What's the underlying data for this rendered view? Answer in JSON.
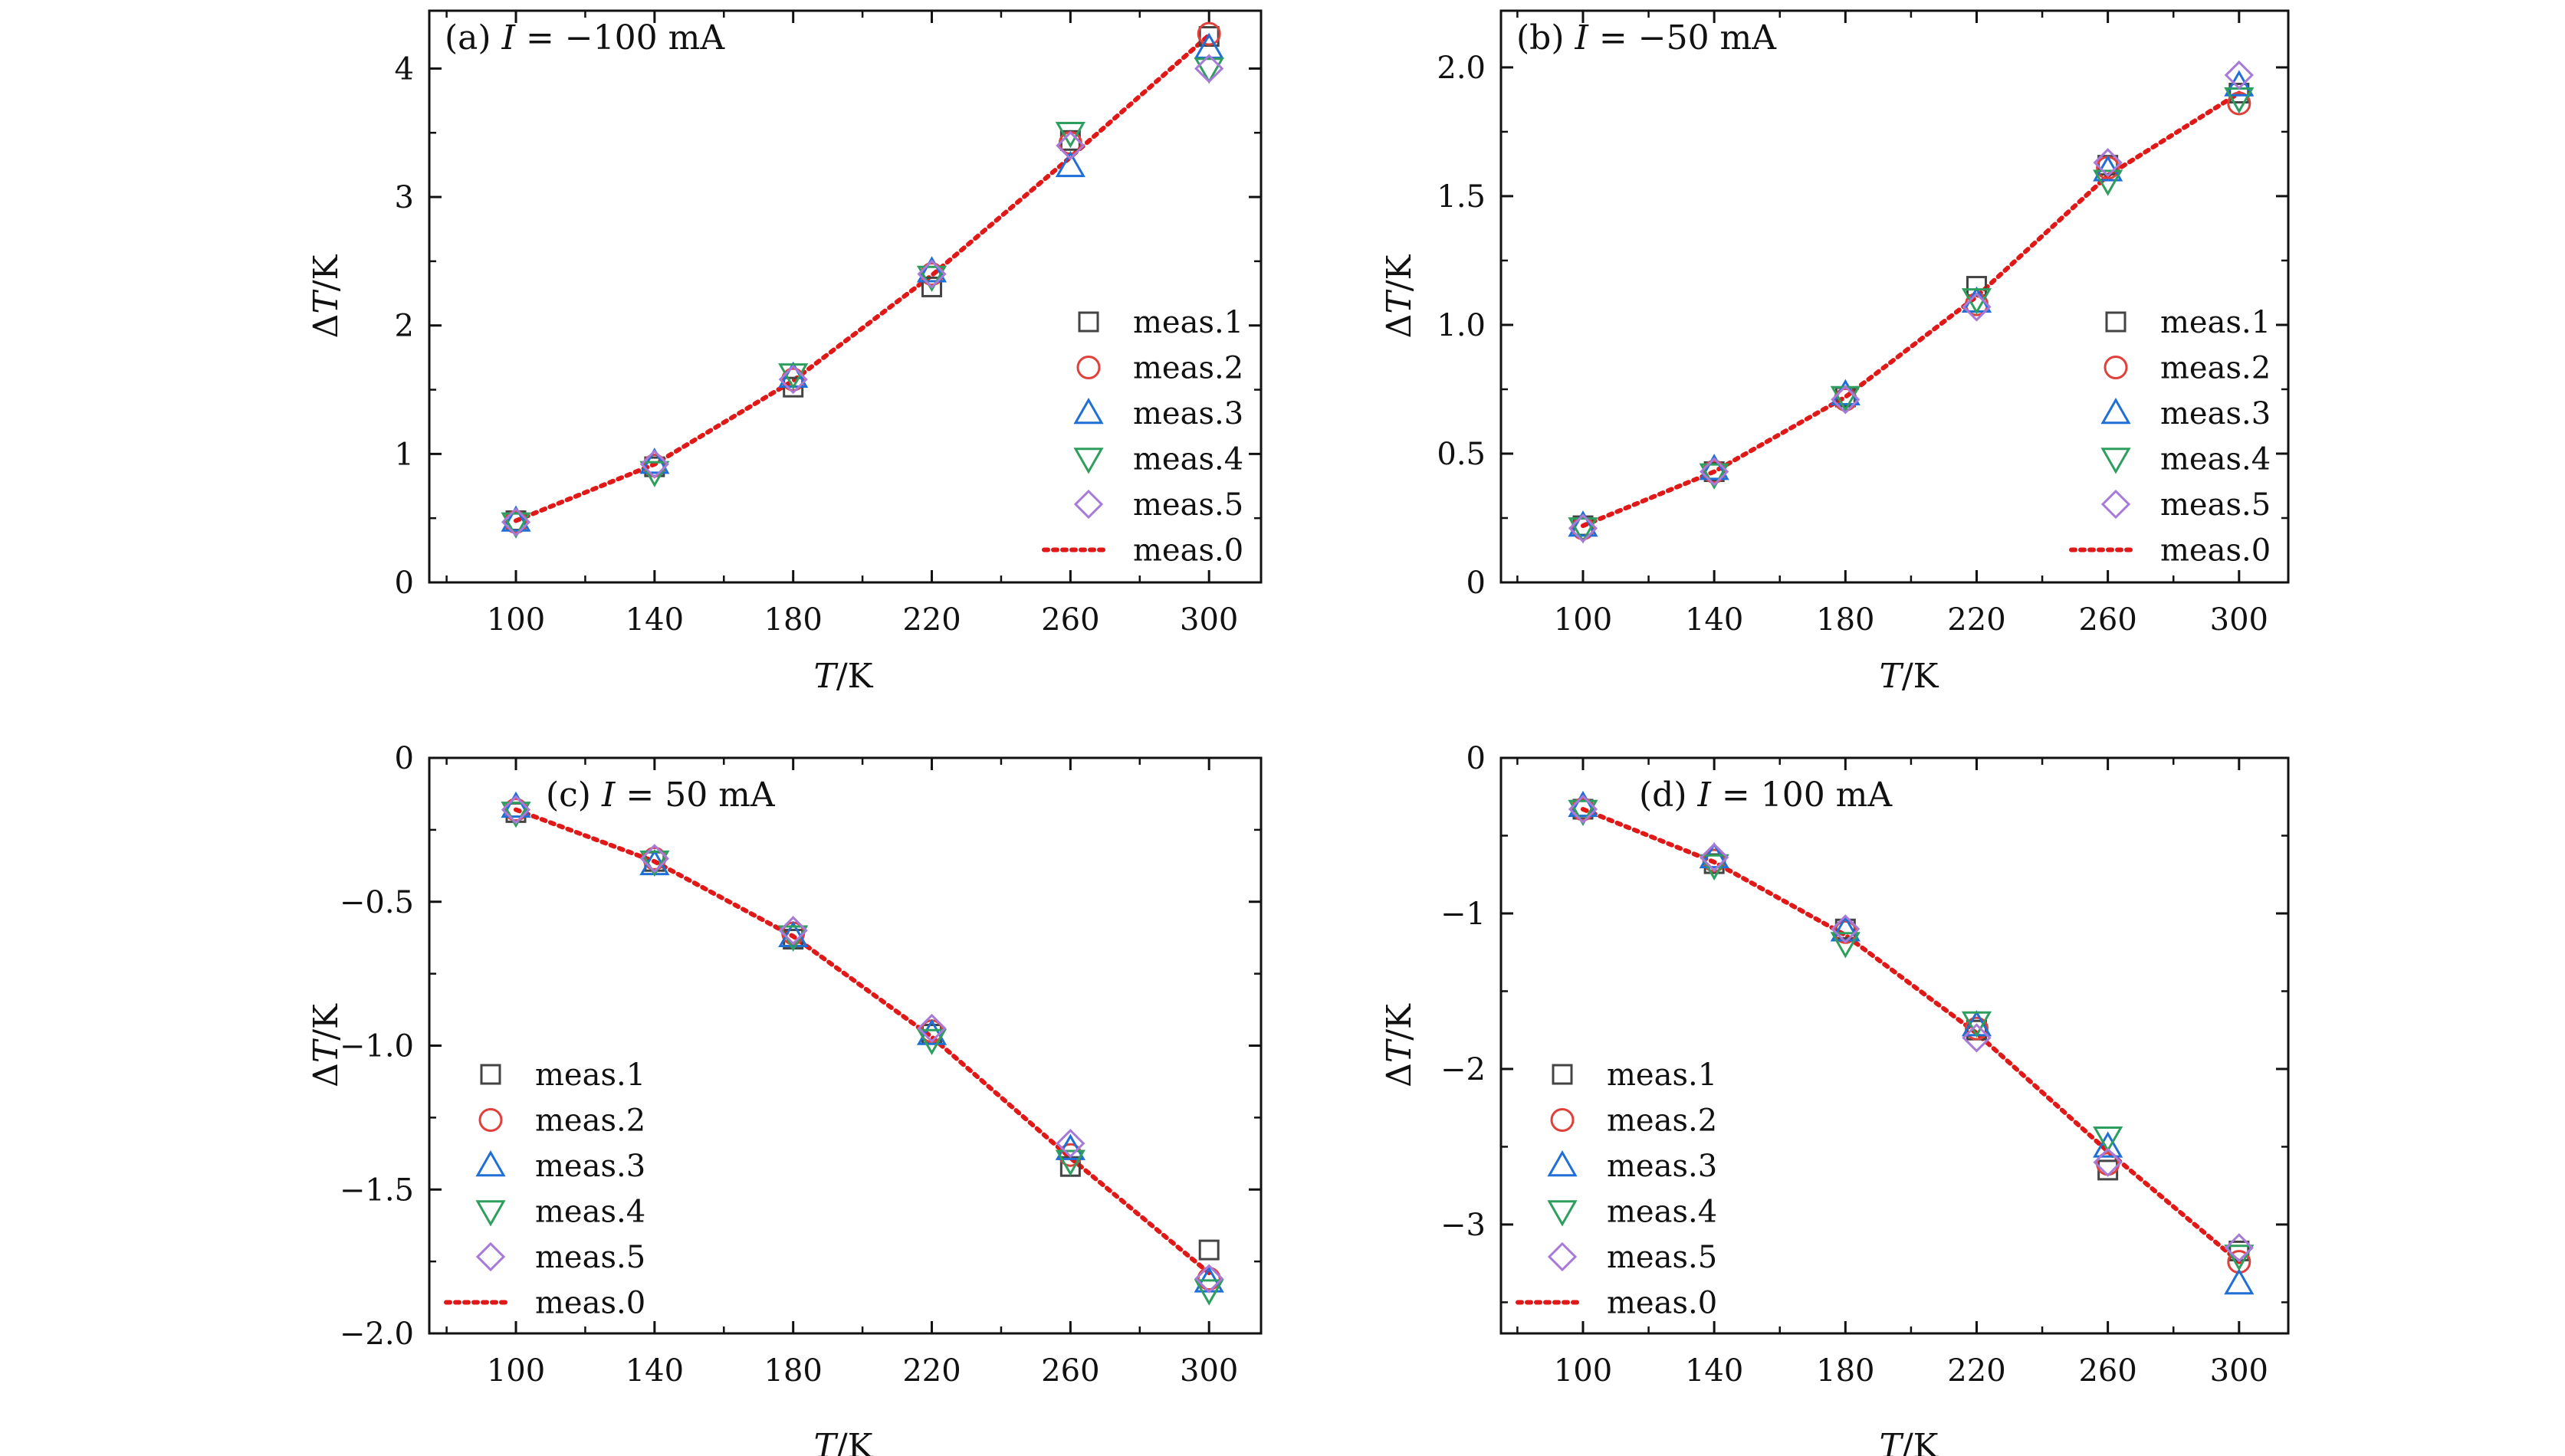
{
  "figure": {
    "x_axis_title": {
      "italic": "T",
      "rest": "/K"
    },
    "y_axis_title": {
      "prefix": "Δ",
      "italic": "T",
      "rest": "/K"
    }
  },
  "colors": {
    "meas.1": "#444444",
    "meas.2": "#e0403a",
    "meas.3": "#1f6fd6",
    "meas.4": "#2e9e5e",
    "meas.5": "#a77ad8",
    "meas.0": "#e01818"
  },
  "markers": {
    "meas.1": "square",
    "meas.2": "circle",
    "meas.3": "triangle-up",
    "meas.4": "triangle-down",
    "meas.5": "diamond",
    "meas.0": "dotted-line"
  },
  "chart_data": [
    {
      "type": "scatter",
      "panel_label": "(a)",
      "current": {
        "italic": "I",
        "text": " = −100 mA"
      },
      "xlabel": "T/K",
      "ylabel": "ΔT/K",
      "xlim": [
        75,
        315
      ],
      "ylim": [
        0,
        4.45
      ],
      "xticks": [
        "100",
        "140",
        "180",
        "220",
        "260",
        "300"
      ],
      "xtick_values": [
        100,
        140,
        180,
        220,
        260,
        300
      ],
      "yticks": [
        "0",
        "1",
        "2",
        "3",
        "4"
      ],
      "ytick_values": [
        0,
        1,
        2,
        3,
        4
      ],
      "yminor_step": 0.5,
      "legend_position": "right-middle",
      "x": [
        100,
        140,
        180,
        220,
        260,
        300
      ],
      "series": [
        {
          "name": "meas.1",
          "values": [
            0.48,
            0.9,
            1.52,
            2.3,
            3.44,
            4.25
          ]
        },
        {
          "name": "meas.2",
          "values": [
            0.47,
            0.91,
            1.58,
            2.4,
            3.42,
            4.27
          ]
        },
        {
          "name": "meas.3",
          "values": [
            0.48,
            0.93,
            1.6,
            2.42,
            3.24,
            4.16
          ]
        },
        {
          "name": "meas.4",
          "values": [
            0.46,
            0.86,
            1.62,
            2.38,
            3.5,
            4.0
          ]
        },
        {
          "name": "meas.5",
          "values": [
            0.47,
            0.92,
            1.58,
            2.4,
            3.4,
            4.0
          ]
        },
        {
          "name": "meas.0",
          "values": [
            0.48,
            0.92,
            1.57,
            2.39,
            3.31,
            4.26
          ]
        }
      ]
    },
    {
      "type": "scatter",
      "panel_label": "(b)",
      "current": {
        "italic": "I",
        "text": " = −50 mA"
      },
      "xlabel": "T/K",
      "ylabel": "ΔT/K",
      "xlim": [
        75,
        315
      ],
      "ylim": [
        0,
        2.22
      ],
      "xticks": [
        "100",
        "140",
        "180",
        "220",
        "260",
        "300"
      ],
      "xtick_values": [
        100,
        140,
        180,
        220,
        260,
        300
      ],
      "yticks": [
        "0",
        "0.5",
        "1.0",
        "1.5",
        "2.0"
      ],
      "ytick_values": [
        0,
        0.5,
        1.0,
        1.5,
        2.0
      ],
      "yminor_step": 0.25,
      "legend_position": "right-middle",
      "x": [
        100,
        140,
        180,
        220,
        260,
        300
      ],
      "series": [
        {
          "name": "meas.1",
          "values": [
            0.22,
            0.43,
            0.72,
            1.15,
            1.62,
            1.9
          ]
        },
        {
          "name": "meas.2",
          "values": [
            0.21,
            0.43,
            0.71,
            1.08,
            1.61,
            1.86
          ]
        },
        {
          "name": "meas.3",
          "values": [
            0.22,
            0.44,
            0.73,
            1.09,
            1.6,
            1.93
          ]
        },
        {
          "name": "meas.4",
          "values": [
            0.21,
            0.42,
            0.72,
            1.1,
            1.56,
            1.88
          ]
        },
        {
          "name": "meas.5",
          "values": [
            0.21,
            0.43,
            0.71,
            1.07,
            1.63,
            1.97
          ]
        },
        {
          "name": "meas.0",
          "values": [
            0.22,
            0.43,
            0.72,
            1.11,
            1.58,
            1.9
          ]
        }
      ]
    },
    {
      "type": "scatter",
      "panel_label": "(c)",
      "current": {
        "italic": "I",
        "text": " = 50 mA"
      },
      "xlabel": "T/K",
      "ylabel": "ΔT/K",
      "xlim": [
        75,
        315
      ],
      "ylim": [
        -2.0,
        0
      ],
      "xticks": [
        "100",
        "140",
        "180",
        "220",
        "260",
        "300"
      ],
      "xtick_values": [
        100,
        140,
        180,
        220,
        260,
        300
      ],
      "yticks": [
        "0",
        "−0.5",
        "−1.0",
        "−1.5",
        "−2.0"
      ],
      "ytick_values": [
        0,
        -0.5,
        -1.0,
        -1.5,
        -2.0
      ],
      "yminor_step": 0.25,
      "legend_position": "left-bottom",
      "x": [
        100,
        140,
        180,
        220,
        260,
        300
      ],
      "series": [
        {
          "name": "meas.1",
          "values": [
            -0.19,
            -0.36,
            -0.63,
            -0.96,
            -1.42,
            -1.71
          ]
        },
        {
          "name": "meas.2",
          "values": [
            -0.18,
            -0.35,
            -0.61,
            -0.95,
            -1.38,
            -1.81
          ]
        },
        {
          "name": "meas.3",
          "values": [
            -0.17,
            -0.37,
            -0.62,
            -0.96,
            -1.36,
            -1.82
          ]
        },
        {
          "name": "meas.4",
          "values": [
            -0.19,
            -0.36,
            -0.62,
            -0.98,
            -1.4,
            -1.85
          ]
        },
        {
          "name": "meas.5",
          "values": [
            -0.18,
            -0.35,
            -0.6,
            -0.94,
            -1.34,
            -1.81
          ]
        },
        {
          "name": "meas.0",
          "values": [
            -0.18,
            -0.36,
            -0.62,
            -0.97,
            -1.39,
            -1.79
          ]
        }
      ]
    },
    {
      "type": "scatter",
      "panel_label": "(d)",
      "current": {
        "italic": "I",
        "text": " = 100 mA"
      },
      "xlabel": "T/K",
      "ylabel": "ΔT/K",
      "xlim": [
        75,
        315
      ],
      "ylim": [
        -3.7,
        0
      ],
      "xticks": [
        "100",
        "140",
        "180",
        "220",
        "260",
        "300"
      ],
      "xtick_values": [
        100,
        140,
        180,
        220,
        260,
        300
      ],
      "yticks": [
        "0",
        "−1",
        "−2",
        "−3"
      ],
      "ytick_values": [
        0,
        -1,
        -2,
        -3
      ],
      "yminor_step": 0.5,
      "legend_position": "left-bottom",
      "x": [
        100,
        140,
        180,
        220,
        260,
        300
      ],
      "series": [
        {
          "name": "meas.1",
          "values": [
            -0.33,
            -0.68,
            -1.1,
            -1.75,
            -2.65,
            -3.17
          ]
        },
        {
          "name": "meas.2",
          "values": [
            -0.33,
            -0.66,
            -1.12,
            -1.74,
            -2.61,
            -3.24
          ]
        },
        {
          "name": "meas.3",
          "values": [
            -0.31,
            -0.64,
            -1.11,
            -1.72,
            -2.5,
            -3.38
          ]
        },
        {
          "name": "meas.4",
          "values": [
            -0.34,
            -0.69,
            -1.19,
            -1.7,
            -2.44,
            -3.2
          ]
        },
        {
          "name": "meas.5",
          "values": [
            -0.33,
            -0.64,
            -1.1,
            -1.8,
            -2.6,
            -3.15
          ]
        },
        {
          "name": "meas.0",
          "values": [
            -0.33,
            -0.67,
            -1.14,
            -1.77,
            -2.53,
            -3.24
          ]
        }
      ]
    }
  ]
}
